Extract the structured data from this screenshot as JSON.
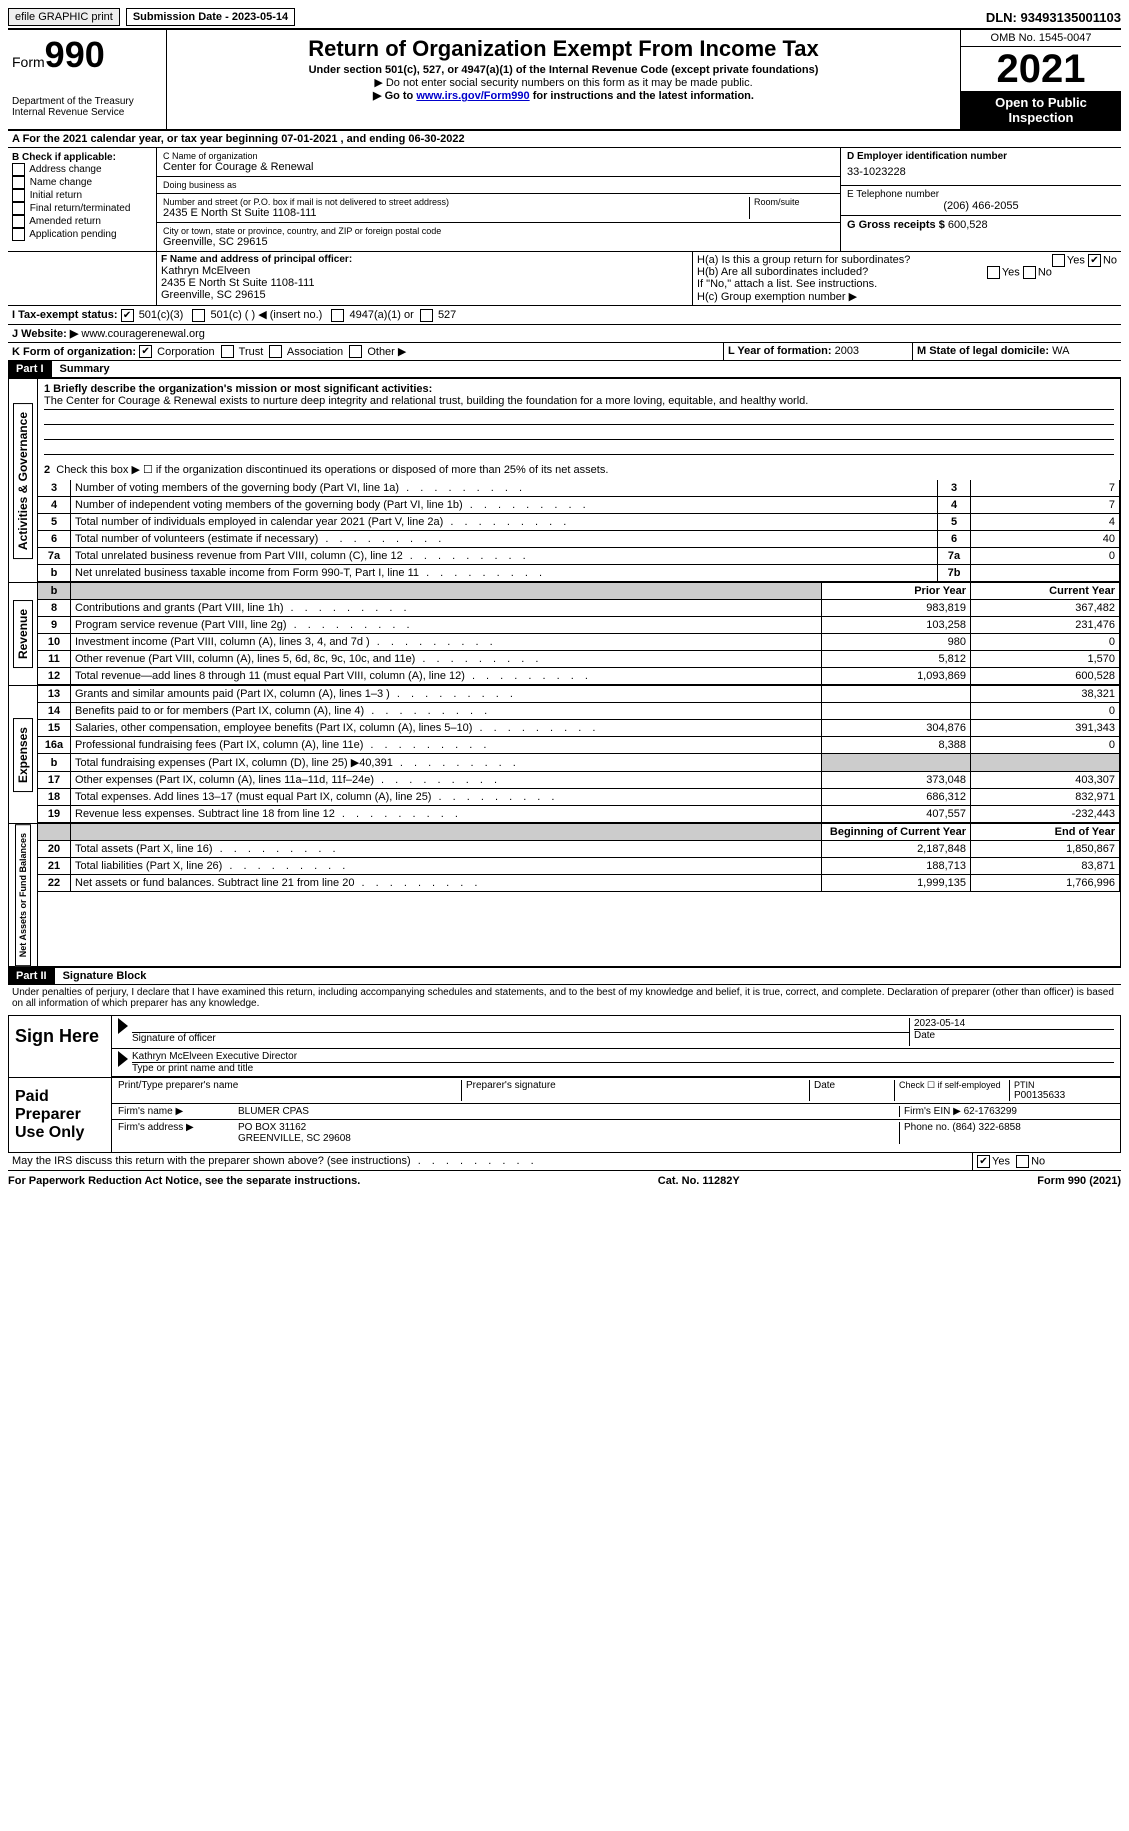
{
  "topbar": {
    "efile": "efile GRAPHIC print",
    "submission": "Submission Date - 2023-05-14",
    "dln": "DLN: 93493135001103"
  },
  "header": {
    "form_prefix": "Form",
    "form_number": "990",
    "dept": "Department of the Treasury",
    "irs": "Internal Revenue Service",
    "title": "Return of Organization Exempt From Income Tax",
    "subtitle": "Under section 501(c), 527, or 4947(a)(1) of the Internal Revenue Code (except private foundations)",
    "note1": "▶ Do not enter social security numbers on this form as it may be made public.",
    "note2_pre": "▶ Go to ",
    "note2_link": "www.irs.gov/Form990",
    "note2_post": " for instructions and the latest information.",
    "omb": "OMB No. 1545-0047",
    "year": "2021",
    "open": "Open to Public Inspection"
  },
  "line_a": "A For the 2021 calendar year, or tax year beginning 07-01-2021   , and ending 06-30-2022",
  "box_b": {
    "label": "B Check if applicable:",
    "items": [
      "Address change",
      "Name change",
      "Initial return",
      "Final return/terminated",
      "Amended return",
      "Application pending"
    ]
  },
  "box_c": {
    "name_label": "C Name of organization",
    "name": "Center for Courage & Renewal",
    "dba_label": "Doing business as",
    "dba": "",
    "addr_label": "Number and street (or P.O. box if mail is not delivered to street address)",
    "room_label": "Room/suite",
    "addr": "2435 E North St Suite 1108-111",
    "city_label": "City or town, state or province, country, and ZIP or foreign postal code",
    "city": "Greenville, SC  29615"
  },
  "box_d": {
    "label": "D Employer identification number",
    "value": "33-1023228"
  },
  "box_e": {
    "label": "E Telephone number",
    "value": "(206) 466-2055"
  },
  "box_g": {
    "label": "G Gross receipts $",
    "value": "600,528"
  },
  "box_f": {
    "label": "F Name and address of principal officer:",
    "name": "Kathryn McElveen",
    "addr1": "2435 E North St Suite 1108-111",
    "addr2": "Greenville, SC  29615"
  },
  "box_h": {
    "a": "H(a) Is this a group return for subordinates?",
    "b": "H(b) Are all subordinates included?",
    "note": "If \"No,\" attach a list. See instructions.",
    "c": "H(c) Group exemption number ▶"
  },
  "box_i": {
    "label": "I Tax-exempt status:",
    "opt1": "501(c)(3)",
    "opt2": "501(c) (   ) ◀ (insert no.)",
    "opt3": "4947(a)(1) or",
    "opt4": "527"
  },
  "box_j": {
    "label": "J Website: ▶",
    "value": "www.couragerenewal.org"
  },
  "box_k": {
    "label": "K Form of organization:",
    "corp": "Corporation",
    "trust": "Trust",
    "assoc": "Association",
    "other": "Other ▶"
  },
  "box_l": {
    "label": "L Year of formation:",
    "value": "2003"
  },
  "box_m": {
    "label": "M State of legal domicile:",
    "value": "WA"
  },
  "part1": {
    "header": "Part I",
    "title": "Summary",
    "line1_label": "1 Briefly describe the organization's mission or most significant activities:",
    "mission": "The Center for Courage & Renewal exists to nurture deep integrity and relational trust, building the foundation for a more loving, equitable, and healthy world.",
    "line2": "Check this box ▶ ☐ if the organization discontinued its operations or disposed of more than 25% of its net assets.",
    "rows_gov": [
      {
        "n": "3",
        "t": "Number of voting members of the governing body (Part VI, line 1a)",
        "b": "3",
        "v": "7"
      },
      {
        "n": "4",
        "t": "Number of independent voting members of the governing body (Part VI, line 1b)",
        "b": "4",
        "v": "7"
      },
      {
        "n": "5",
        "t": "Total number of individuals employed in calendar year 2021 (Part V, line 2a)",
        "b": "5",
        "v": "4"
      },
      {
        "n": "6",
        "t": "Total number of volunteers (estimate if necessary)",
        "b": "6",
        "v": "40"
      },
      {
        "n": "7a",
        "t": "Total unrelated business revenue from Part VIII, column (C), line 12",
        "b": "7a",
        "v": "0"
      },
      {
        "n": "b",
        "t": "Net unrelated business taxable income from Form 990-T, Part I, line 11",
        "b": "7b",
        "v": ""
      }
    ],
    "col_prior": "Prior Year",
    "col_current": "Current Year",
    "rows_rev": [
      {
        "n": "8",
        "t": "Contributions and grants (Part VIII, line 1h)",
        "p": "983,819",
        "c": "367,482"
      },
      {
        "n": "9",
        "t": "Program service revenue (Part VIII, line 2g)",
        "p": "103,258",
        "c": "231,476"
      },
      {
        "n": "10",
        "t": "Investment income (Part VIII, column (A), lines 3, 4, and 7d )",
        "p": "980",
        "c": "0"
      },
      {
        "n": "11",
        "t": "Other revenue (Part VIII, column (A), lines 5, 6d, 8c, 9c, 10c, and 11e)",
        "p": "5,812",
        "c": "1,570"
      },
      {
        "n": "12",
        "t": "Total revenue—add lines 8 through 11 (must equal Part VIII, column (A), line 12)",
        "p": "1,093,869",
        "c": "600,528"
      }
    ],
    "rows_exp": [
      {
        "n": "13",
        "t": "Grants and similar amounts paid (Part IX, column (A), lines 1–3 )",
        "p": "",
        "c": "38,321"
      },
      {
        "n": "14",
        "t": "Benefits paid to or for members (Part IX, column (A), line 4)",
        "p": "",
        "c": "0"
      },
      {
        "n": "15",
        "t": "Salaries, other compensation, employee benefits (Part IX, column (A), lines 5–10)",
        "p": "304,876",
        "c": "391,343"
      },
      {
        "n": "16a",
        "t": "Professional fundraising fees (Part IX, column (A), line 11e)",
        "p": "8,388",
        "c": "0"
      },
      {
        "n": "b",
        "t": "Total fundraising expenses (Part IX, column (D), line 25) ▶40,391",
        "p": "shade",
        "c": "shade"
      },
      {
        "n": "17",
        "t": "Other expenses (Part IX, column (A), lines 11a–11d, 11f–24e)",
        "p": "373,048",
        "c": "403,307"
      },
      {
        "n": "18",
        "t": "Total expenses. Add lines 13–17 (must equal Part IX, column (A), line 25)",
        "p": "686,312",
        "c": "832,971"
      },
      {
        "n": "19",
        "t": "Revenue less expenses. Subtract line 18 from line 12",
        "p": "407,557",
        "c": "-232,443"
      }
    ],
    "col_begin": "Beginning of Current Year",
    "col_end": "End of Year",
    "rows_net": [
      {
        "n": "20",
        "t": "Total assets (Part X, line 16)",
        "p": "2,187,848",
        "c": "1,850,867"
      },
      {
        "n": "21",
        "t": "Total liabilities (Part X, line 26)",
        "p": "188,713",
        "c": "83,871"
      },
      {
        "n": "22",
        "t": "Net assets or fund balances. Subtract line 21 from line 20",
        "p": "1,999,135",
        "c": "1,766,996"
      }
    ],
    "vtab_gov": "Activities & Governance",
    "vtab_rev": "Revenue",
    "vtab_exp": "Expenses",
    "vtab_net": "Net Assets or Fund Balances"
  },
  "part2": {
    "header": "Part II",
    "title": "Signature Block",
    "penalty": "Under penalties of perjury, I declare that I have examined this return, including accompanying schedules and statements, and to the best of my knowledge and belief, it is true, correct, and complete. Declaration of preparer (other than officer) is based on all information of which preparer has any knowledge.",
    "sign_here": "Sign Here",
    "sig_officer": "Signature of officer",
    "sig_date": "2023-05-14",
    "date_label": "Date",
    "officer_name": "Kathryn McElveen Executive Director",
    "type_name": "Type or print name and title",
    "paid": "Paid Preparer Use Only",
    "prep_name_label": "Print/Type preparer's name",
    "prep_sig_label": "Preparer's signature",
    "check_self": "Check ☐ if self-employed",
    "ptin_label": "PTIN",
    "ptin": "P00135633",
    "firm_name_label": "Firm's name    ▶",
    "firm_name": "BLUMER CPAS",
    "firm_ein_label": "Firm's EIN ▶",
    "firm_ein": "62-1763299",
    "firm_addr_label": "Firm's address ▶",
    "firm_addr1": "PO BOX 31162",
    "firm_addr2": "GREENVILLE, SC  29608",
    "phone_label": "Phone no.",
    "phone": "(864) 322-6858",
    "discuss": "May the IRS discuss this return with the preparer shown above? (see instructions)",
    "yes": "Yes",
    "no": "No"
  },
  "footer": {
    "left": "For Paperwork Reduction Act Notice, see the separate instructions.",
    "mid": "Cat. No. 11282Y",
    "right": "Form 990 (2021)"
  }
}
